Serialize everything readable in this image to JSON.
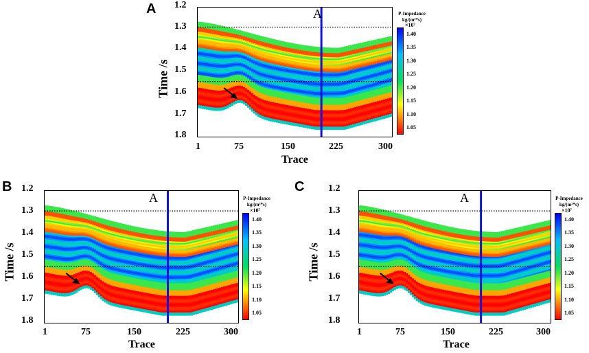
{
  "figure": {
    "colorbar": {
      "title_line1": "P-Impedance",
      "title_line2": "kg/(m²*s)",
      "multiplier": "×10⁷",
      "ticks": [
        "1.40",
        "1.35",
        "1.30",
        "1.25",
        "1.20",
        "1.15",
        "1.10",
        "1.05"
      ],
      "colors": {
        "low": "#ff0000",
        "mid_low": "#ffff00",
        "mid": "#00e060",
        "mid_high": "#00c0ff",
        "high": "#0000ff"
      }
    },
    "well_color": "#1010e0"
  },
  "chart_data": [
    {
      "type": "heatmap",
      "panel": "A",
      "well_label": "A",
      "xlabel": "Trace",
      "ylabel": "Time /s",
      "x_ticks": [
        "1",
        "75",
        "150",
        "225",
        "300"
      ],
      "y_ticks": [
        "1.2",
        "1.3",
        "1.4",
        "1.5",
        "1.6",
        "1.7",
        "1.8"
      ],
      "xlim": [
        1,
        300
      ],
      "ylim": [
        1.2,
        1.8
      ],
      "well_trace": 190,
      "dotted_lines_time": [
        1.29,
        1.54
      ],
      "arrow_target": {
        "trace": 62,
        "time": 1.62
      },
      "value_range": [
        1.02,
        1.45
      ]
    },
    {
      "type": "heatmap",
      "panel": "B",
      "well_label": "A",
      "xlabel": "Trace",
      "ylabel": "Time /s",
      "x_ticks": [
        "1",
        "75",
        "150",
        "225",
        "300"
      ],
      "y_ticks": [
        "1.2",
        "1.3",
        "1.4",
        "1.5",
        "1.6",
        "1.7",
        "1.8"
      ],
      "xlim": [
        1,
        300
      ],
      "ylim": [
        1.2,
        1.8
      ],
      "well_trace": 190,
      "dotted_lines_time": [
        1.29,
        1.54
      ],
      "arrow_target": {
        "trace": 55,
        "time": 1.62
      },
      "value_range": [
        1.02,
        1.45
      ]
    },
    {
      "type": "heatmap",
      "panel": "C",
      "well_label": "A",
      "xlabel": "Trace",
      "ylabel": "Time /s",
      "x_ticks": [
        "1",
        "75",
        "150",
        "225",
        "300"
      ],
      "y_ticks": [
        "1.2",
        "1.3",
        "1.4",
        "1.5",
        "1.6",
        "1.7",
        "1.8"
      ],
      "xlim": [
        1,
        300
      ],
      "ylim": [
        1.2,
        1.8
      ],
      "well_trace": 190,
      "dotted_lines_time": [
        1.29,
        1.54
      ],
      "arrow_target": {
        "trace": 55,
        "time": 1.62
      },
      "value_range": [
        1.02,
        1.45
      ]
    }
  ]
}
